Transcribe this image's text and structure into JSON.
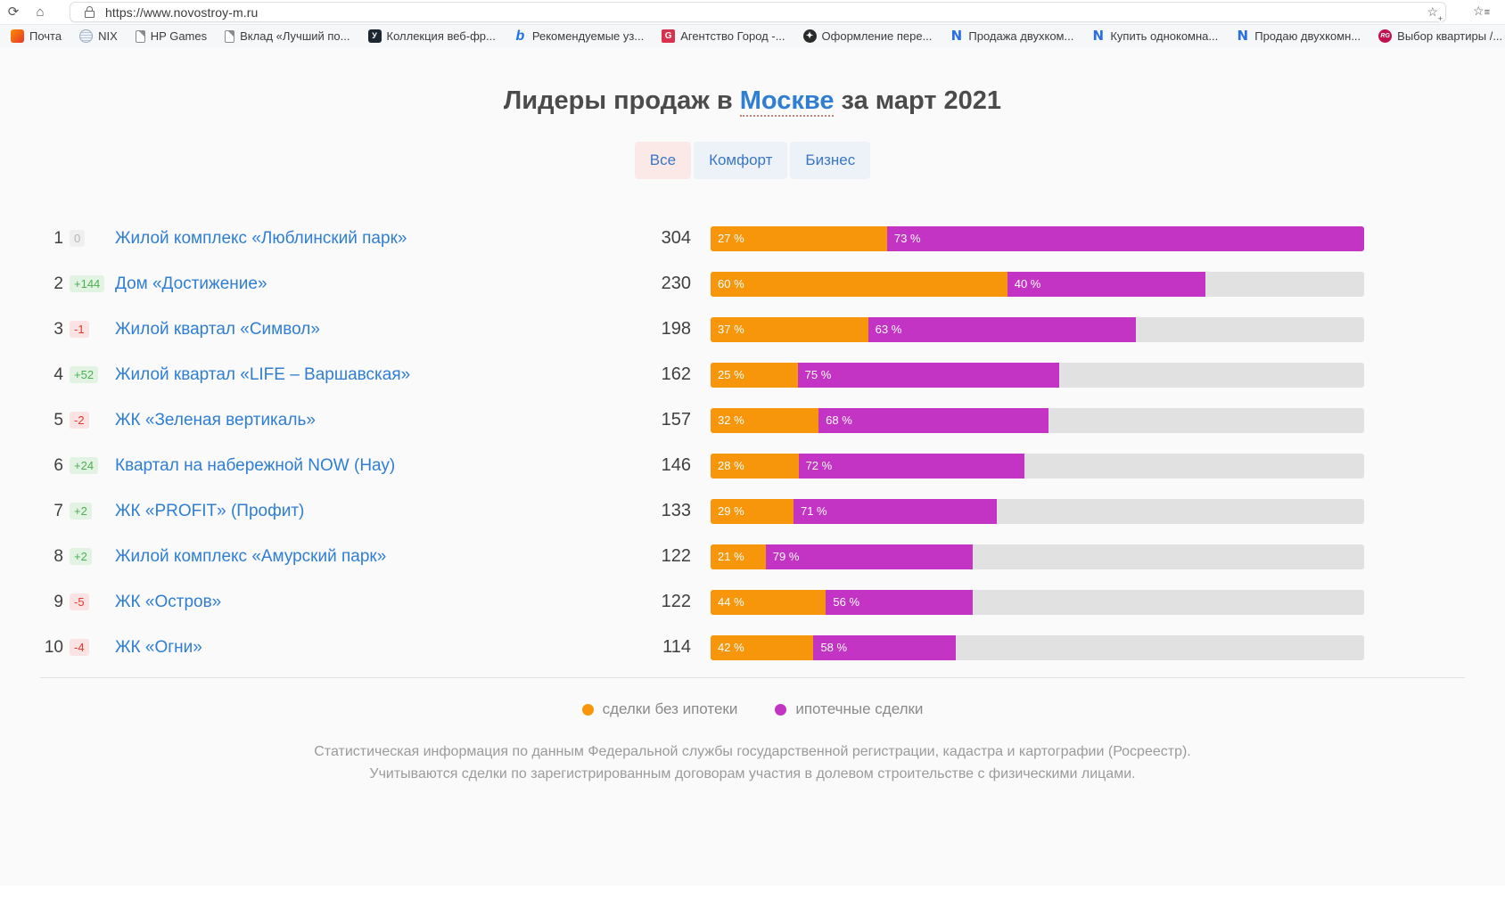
{
  "browser": {
    "url": "https://www.novostroy-m.ru",
    "bookmarks": [
      {
        "label": "Почта",
        "icon": "mail-icon",
        "cls": "ico-mail",
        "glyph": ""
      },
      {
        "label": "NIX",
        "icon": "nix-coin-icon",
        "cls": "ico-nix",
        "glyph": ""
      },
      {
        "label": "HP Games",
        "icon": "page-icon",
        "cls": "ico-page",
        "glyph": ""
      },
      {
        "label": "Вклад «Лучший по...",
        "icon": "page-icon",
        "cls": "ico-page",
        "glyph": ""
      },
      {
        "label": "Коллекция веб-фр...",
        "icon": "dark-square-icon",
        "cls": "ico-darky",
        "glyph": "У"
      },
      {
        "label": "Рекомендуемые уз...",
        "icon": "bing-icon",
        "cls": "ico-bing",
        "glyph": "b"
      },
      {
        "label": "Агентство Город -...",
        "icon": "red-g-icon",
        "cls": "ico-redg",
        "glyph": "G"
      },
      {
        "label": "Оформление пере...",
        "icon": "dark-star-icon",
        "cls": "ico-darkplus",
        "glyph": "✦"
      },
      {
        "label": "Продажа двухком...",
        "icon": "blue-n-icon",
        "cls": "ico-blueN",
        "glyph": "N"
      },
      {
        "label": "Купить однокомна...",
        "icon": "blue-n-icon",
        "cls": "ico-blueN",
        "glyph": "N"
      },
      {
        "label": "Продаю двухкомн...",
        "icon": "blue-n-icon",
        "cls": "ico-blueN",
        "glyph": "N"
      },
      {
        "label": "Выбор квартиры /...",
        "icon": "rg-circle-icon",
        "cls": "ico-rg",
        "glyph": "RG"
      }
    ],
    "chevron": "❯"
  },
  "header": {
    "title_prefix": "Лидеры продаж в ",
    "title_link": "Москве",
    "title_suffix": " за март 2021"
  },
  "tabs": [
    {
      "label": "Все",
      "active": true
    },
    {
      "label": "Комфорт",
      "active": false
    },
    {
      "label": "Бизнес",
      "active": false
    }
  ],
  "colors": {
    "no_mortgage": "#f7950b",
    "mortgage": "#c434c4",
    "track": "#e1e1e1",
    "link": "#2f7ed3",
    "badge_up": "#4caf50",
    "badge_down": "#e5372c",
    "active_tab_bg": "#fbe9e7"
  },
  "chart_data": {
    "type": "bar",
    "title": "Лидеры продаж в Москве за март 2021",
    "max_deals": 304,
    "legend": [
      {
        "label": "сделки без ипотеки",
        "color": "#f7950b"
      },
      {
        "label": "ипотечные сделки",
        "color": "#c434c4"
      }
    ],
    "rows": [
      {
        "rank": 1,
        "change": "0",
        "trend": "zero",
        "name": "Жилой комплекс «Люблинский парк»",
        "deals": 304,
        "pct_no_mortgage": 27,
        "pct_mortgage": 73
      },
      {
        "rank": 2,
        "change": "+144",
        "trend": "up",
        "name": "Дом «Достижение»",
        "deals": 230,
        "pct_no_mortgage": 60,
        "pct_mortgage": 40
      },
      {
        "rank": 3,
        "change": "-1",
        "trend": "down",
        "name": "Жилой квартал «Символ»",
        "deals": 198,
        "pct_no_mortgage": 37,
        "pct_mortgage": 63
      },
      {
        "rank": 4,
        "change": "+52",
        "trend": "up",
        "name": "Жилой квартал «LIFE – Варшавская»",
        "deals": 162,
        "pct_no_mortgage": 25,
        "pct_mortgage": 75
      },
      {
        "rank": 5,
        "change": "-2",
        "trend": "down",
        "name": "ЖК «Зеленая вертикаль»",
        "deals": 157,
        "pct_no_mortgage": 32,
        "pct_mortgage": 68
      },
      {
        "rank": 6,
        "change": "+24",
        "trend": "up",
        "name": "Квартал на набережной NOW (Нау)",
        "deals": 146,
        "pct_no_mortgage": 28,
        "pct_mortgage": 72
      },
      {
        "rank": 7,
        "change": "+2",
        "trend": "up",
        "name": "ЖК «PROFIT» (Профит)",
        "deals": 133,
        "pct_no_mortgage": 29,
        "pct_mortgage": 71
      },
      {
        "rank": 8,
        "change": "+2",
        "trend": "up",
        "name": "Жилой комплекс «Амурский парк»",
        "deals": 122,
        "pct_no_mortgage": 21,
        "pct_mortgage": 79
      },
      {
        "rank": 9,
        "change": "-5",
        "trend": "down",
        "name": "ЖК «Остров»",
        "deals": 122,
        "pct_no_mortgage": 44,
        "pct_mortgage": 56
      },
      {
        "rank": 10,
        "change": "-4",
        "trend": "down",
        "name": "ЖК «Огни»",
        "deals": 114,
        "pct_no_mortgage": 42,
        "pct_mortgage": 58
      }
    ]
  },
  "footer": {
    "line1": "Статистическая информация по данным Федеральной службы государственной регистрации, кадастра и картографии (Росреестр).",
    "line2": "Учитываются сделки по зарегистрированным договорам участия в долевом строительстве с физическими лицами."
  }
}
